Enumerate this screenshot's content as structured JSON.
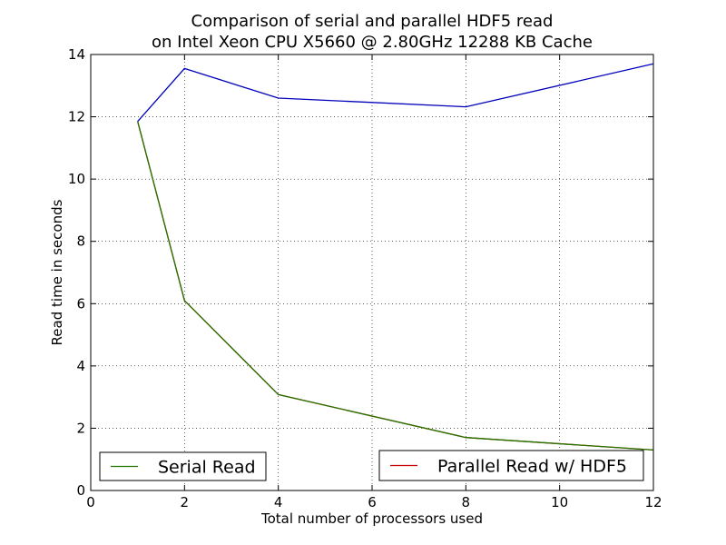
{
  "chart_data": {
    "type": "line",
    "title_lines": [
      "Comparison of serial and parallel HDF5 read",
      "on Intel Xeon CPU X5660 @ 2.80GHz 12288 KB Cache"
    ],
    "xlabel": "Total number of processors used",
    "ylabel": "Read time in seconds",
    "xlim": [
      0,
      12
    ],
    "ylim": [
      0,
      14
    ],
    "xticks": [
      0,
      2,
      4,
      6,
      8,
      10,
      12
    ],
    "yticks": [
      0,
      2,
      4,
      6,
      8,
      10,
      12,
      14
    ],
    "grid": true,
    "series_lines": [
      {
        "color": "#0000bb",
        "x": [
          1,
          2,
          4,
          8,
          12
        ],
        "y": [
          11.85,
          13.55,
          12.6,
          12.32,
          13.7
        ]
      },
      {
        "color": "#cc0000",
        "x": [
          1,
          2,
          4,
          8,
          12
        ],
        "y": [
          11.85,
          6.1,
          3.08,
          1.7,
          1.3
        ]
      },
      {
        "color": "#227700",
        "x": [
          1,
          2,
          4,
          8,
          12
        ],
        "y": [
          11.85,
          6.1,
          3.08,
          1.7,
          1.3
        ]
      }
    ],
    "legends": [
      {
        "label": "Serial Read",
        "color": "#227700",
        "placement": "lower-left"
      },
      {
        "label": "Parallel Read w/ HDF5",
        "color": "#cc0000",
        "placement": "lower-right"
      }
    ]
  }
}
